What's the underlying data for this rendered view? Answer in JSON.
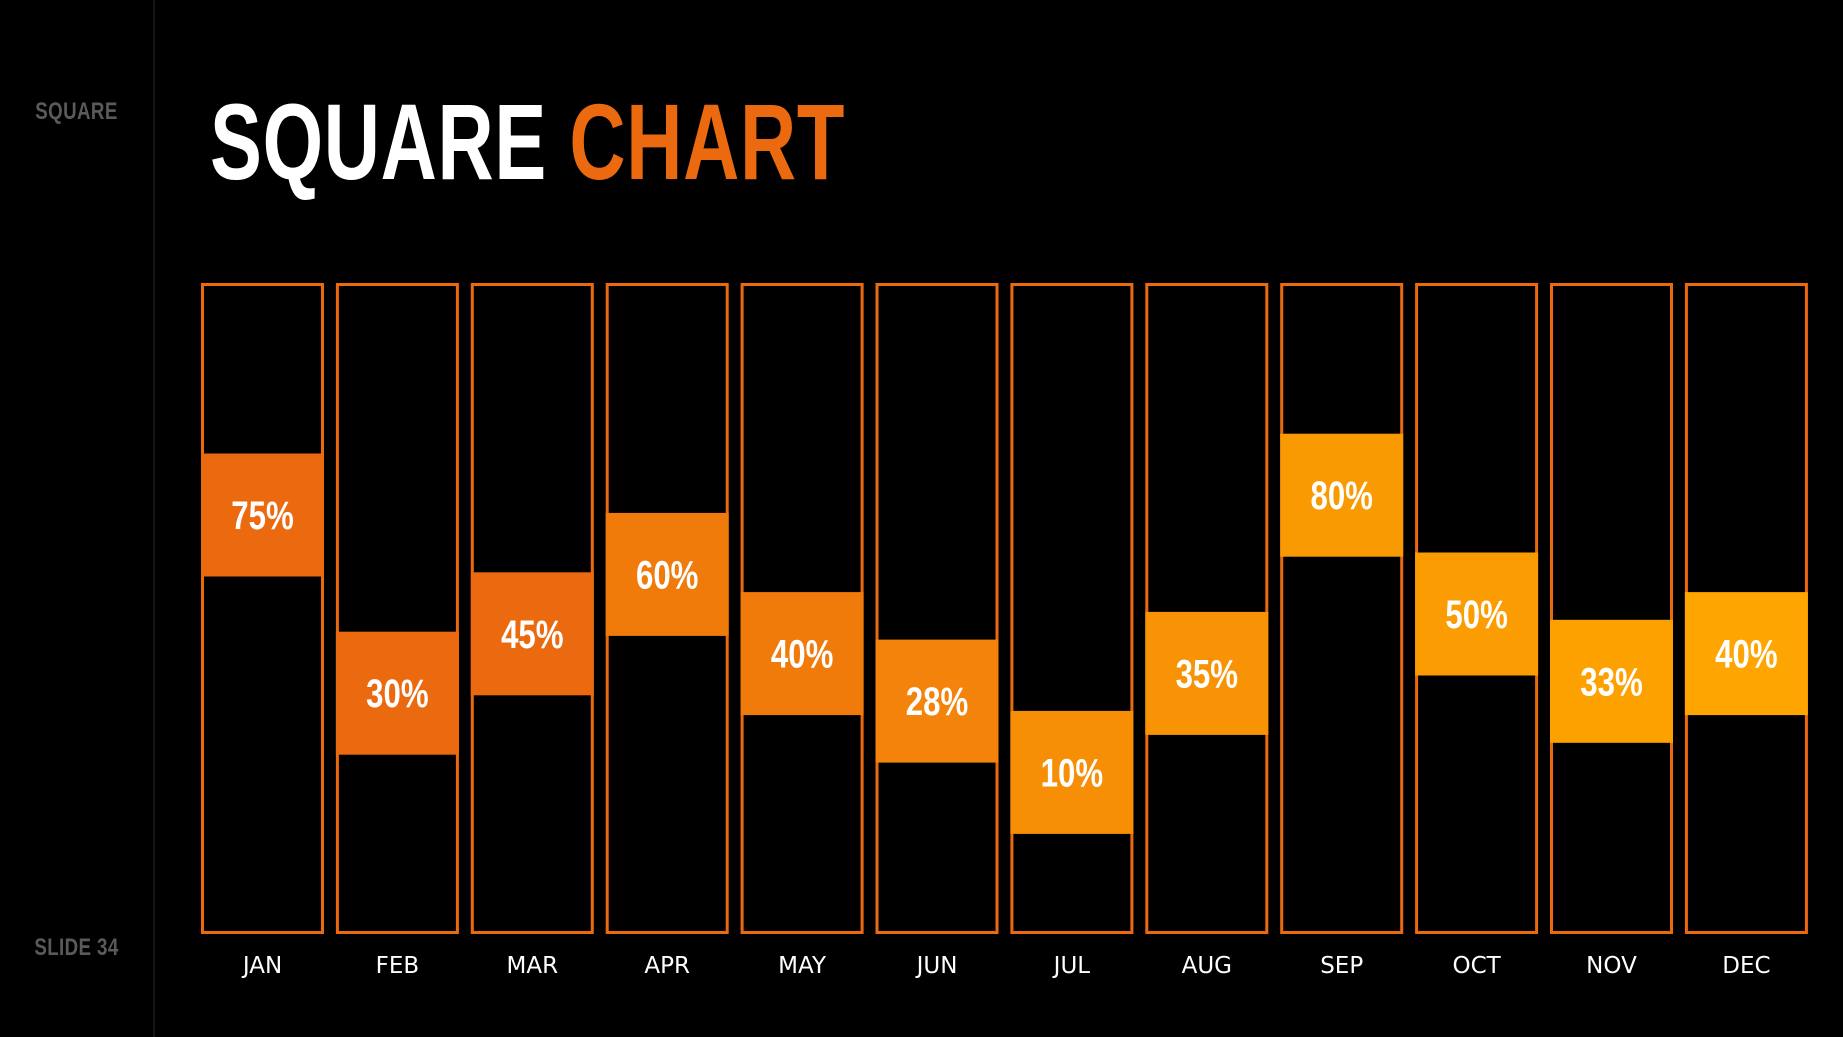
{
  "sidebar": {
    "top_label": "SQUARE",
    "bottom_label": "SLIDE 34"
  },
  "title": {
    "part1": "SQUARE",
    "part2": "CHART"
  },
  "chart_data": {
    "type": "bar",
    "categories": [
      "JAN",
      "FEB",
      "MAR",
      "APR",
      "MAY",
      "JUN",
      "JUL",
      "AUG",
      "SEP",
      "OCT",
      "NOV",
      "DEC"
    ],
    "values": [
      75,
      30,
      45,
      60,
      40,
      28,
      10,
      35,
      80,
      50,
      33,
      40
    ],
    "labels": [
      "75%",
      "30%",
      "45%",
      "60%",
      "40%",
      "28%",
      "10%",
      "35%",
      "80%",
      "50%",
      "33%",
      "40%"
    ],
    "ylim": [
      0,
      100
    ],
    "title": "SQUARE CHART",
    "colors": [
      "#ec6a0f",
      "#ec6a0f",
      "#ec6a0f",
      "#f07b0b",
      "#f07b0b",
      "#f3830a",
      "#f68e06",
      "#f89305",
      "#fa9a03",
      "#fb9d02",
      "#fda101",
      "#fea501"
    ],
    "frame_color": "#ec6a0f",
    "background": "#000000"
  }
}
